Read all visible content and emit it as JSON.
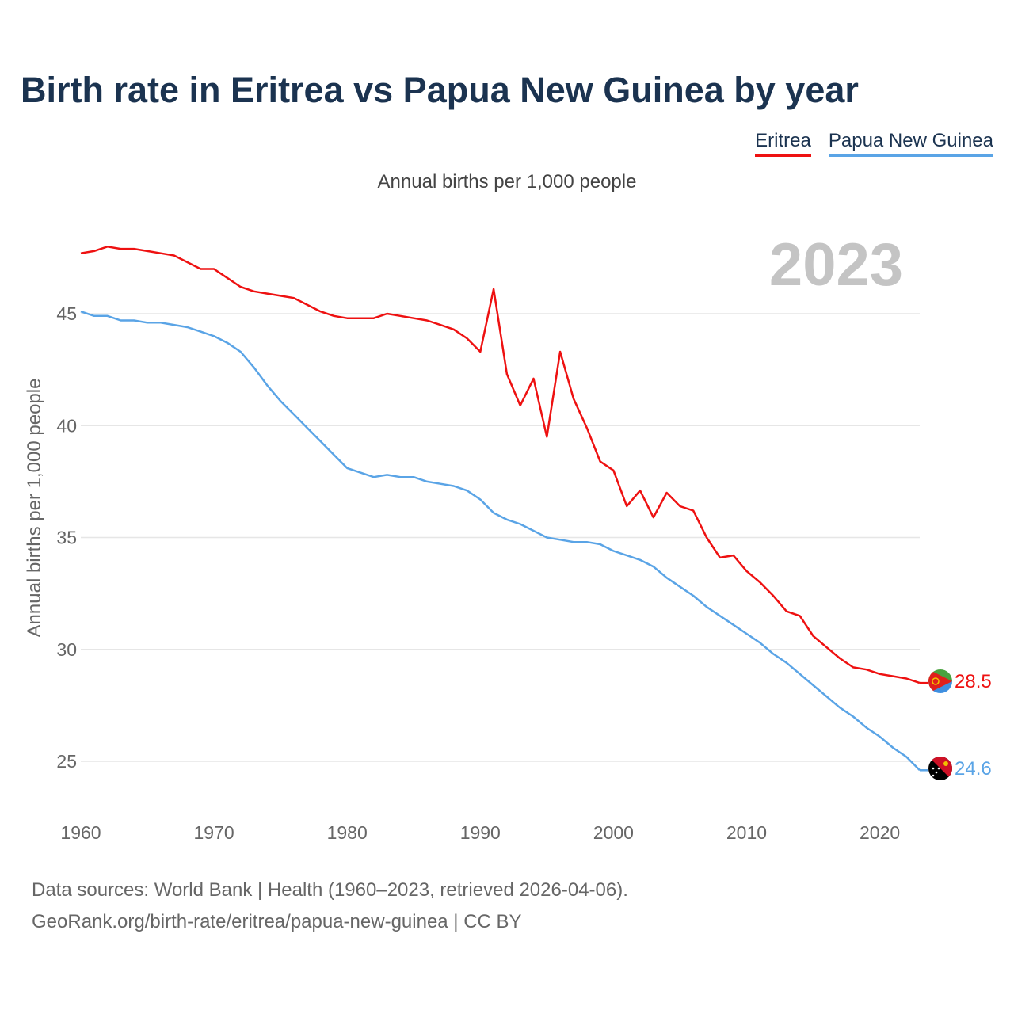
{
  "title": "Birth rate in Eritrea vs Papua New Guinea by year",
  "subtitle": "Annual births per 1,000 people",
  "year_label": "2023",
  "sources": {
    "line1": "Data sources: World Bank | Health (1960–2023, retrieved 2026-04-06).",
    "line2": "GeoRank.org/birth-rate/eritrea/papua-new-guinea | CC BY"
  },
  "chart_data": {
    "type": "line",
    "title": "Birth rate in Eritrea vs Papua New Guinea by year",
    "ylabel": "Annual births per 1,000 people",
    "xlabel": "",
    "xlim": [
      1960,
      2023
    ],
    "ylim": [
      23,
      48
    ],
    "x_ticks": [
      1960,
      1970,
      1980,
      1990,
      2000,
      2010,
      2020
    ],
    "y_ticks": [
      25,
      30,
      35,
      40,
      45
    ],
    "grid": true,
    "legend_position": "top-right",
    "x": [
      1960,
      1961,
      1962,
      1963,
      1964,
      1965,
      1966,
      1967,
      1968,
      1969,
      1970,
      1971,
      1972,
      1973,
      1974,
      1975,
      1976,
      1977,
      1978,
      1979,
      1980,
      1981,
      1982,
      1983,
      1984,
      1985,
      1986,
      1987,
      1988,
      1989,
      1990,
      1991,
      1992,
      1993,
      1994,
      1995,
      1996,
      1997,
      1998,
      1999,
      2000,
      2001,
      2002,
      2003,
      2004,
      2005,
      2006,
      2007,
      2008,
      2009,
      2010,
      2011,
      2012,
      2013,
      2014,
      2015,
      2016,
      2017,
      2018,
      2019,
      2020,
      2021,
      2022,
      2023
    ],
    "series": [
      {
        "name": "Eritrea",
        "color": "#ee1111",
        "end_label": "28.5",
        "flag": "eritrea-flag-icon",
        "values": [
          47.7,
          47.8,
          48.0,
          47.9,
          47.9,
          47.8,
          47.7,
          47.6,
          47.3,
          47.0,
          47.0,
          46.6,
          46.2,
          46.0,
          45.9,
          45.8,
          45.7,
          45.4,
          45.1,
          44.9,
          44.8,
          44.8,
          44.8,
          45.0,
          44.9,
          44.8,
          44.7,
          44.5,
          44.3,
          43.9,
          43.3,
          46.1,
          42.3,
          40.9,
          42.1,
          39.5,
          43.3,
          41.2,
          39.9,
          38.4,
          38.0,
          36.4,
          37.1,
          35.9,
          37.0,
          36.4,
          36.2,
          35.0,
          34.1,
          34.2,
          33.5,
          33.0,
          32.4,
          31.7,
          31.5,
          30.6,
          30.1,
          29.6,
          29.2,
          29.1,
          28.9,
          28.8,
          28.7,
          28.5
        ]
      },
      {
        "name": "Papua New Guinea",
        "color": "#5aa4e6",
        "end_label": "24.6",
        "flag": "papua-new-guinea-flag-icon",
        "values": [
          45.1,
          44.9,
          44.9,
          44.7,
          44.7,
          44.6,
          44.6,
          44.5,
          44.4,
          44.2,
          44.0,
          43.7,
          43.3,
          42.6,
          41.8,
          41.1,
          40.5,
          39.9,
          39.3,
          38.7,
          38.1,
          37.9,
          37.7,
          37.8,
          37.7,
          37.7,
          37.5,
          37.4,
          37.3,
          37.1,
          36.7,
          36.1,
          35.8,
          35.6,
          35.3,
          35.0,
          34.9,
          34.8,
          34.8,
          34.7,
          34.4,
          34.2,
          34.0,
          33.7,
          33.2,
          32.8,
          32.4,
          31.9,
          31.5,
          31.1,
          30.7,
          30.3,
          29.8,
          29.4,
          28.9,
          28.4,
          27.9,
          27.4,
          27.0,
          26.5,
          26.1,
          25.6,
          25.2,
          24.6
        ]
      }
    ]
  }
}
